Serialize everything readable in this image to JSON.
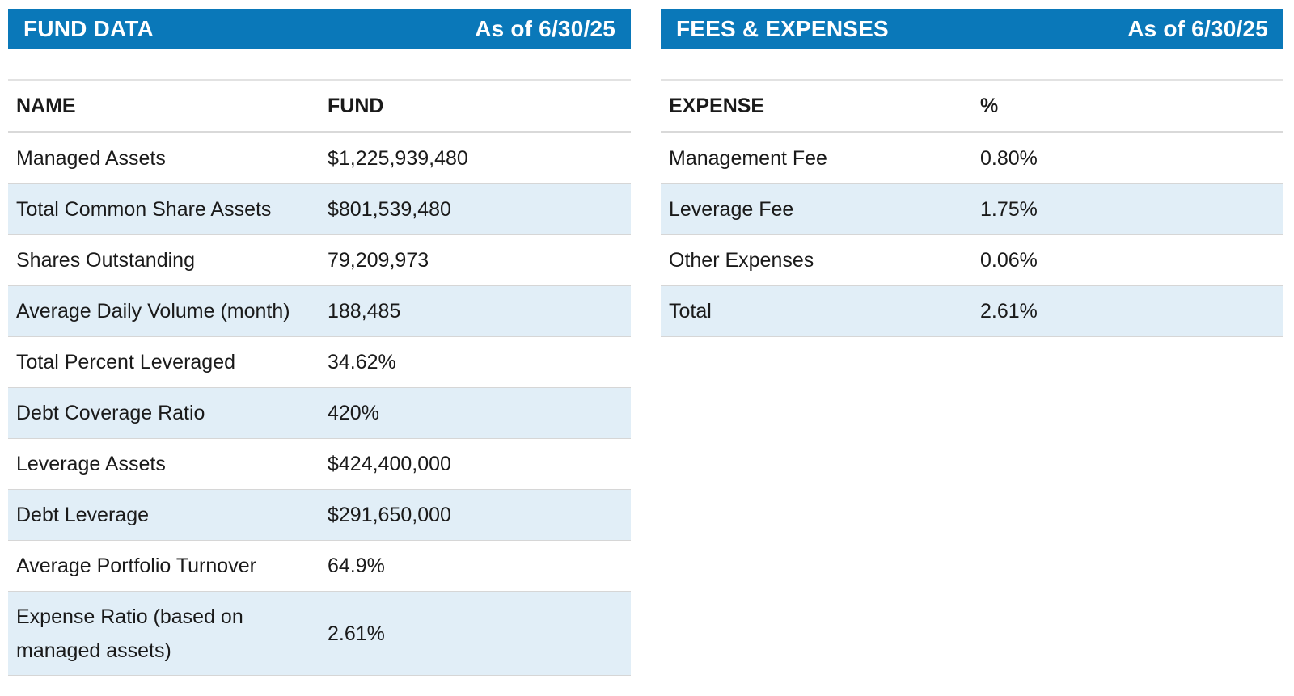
{
  "fund_data": {
    "title": "FUND DATA",
    "as_of": "As of 6/30/25",
    "headers": [
      "NAME",
      "FUND"
    ],
    "rows": [
      [
        "Managed Assets",
        "$1,225,939,480"
      ],
      [
        "Total Common Share Assets",
        "$801,539,480"
      ],
      [
        "Shares Outstanding",
        "79,209,973"
      ],
      [
        "Average Daily Volume (month)",
        "188,485"
      ],
      [
        "Total Percent Leveraged",
        "34.62%"
      ],
      [
        "Debt Coverage Ratio",
        "420%"
      ],
      [
        "Leverage Assets",
        "$424,400,000"
      ],
      [
        "Debt Leverage",
        "$291,650,000"
      ],
      [
        "Average Portfolio Turnover",
        "64.9%"
      ],
      [
        "Expense Ratio (based on managed assets)",
        "2.61%"
      ]
    ]
  },
  "fees_expenses": {
    "title": "FEES & EXPENSES",
    "as_of": "As of 6/30/25",
    "headers": [
      "EXPENSE",
      "%"
    ],
    "rows": [
      [
        "Management Fee",
        "0.80%"
      ],
      [
        "Leverage Fee",
        "1.75%"
      ],
      [
        "Other Expenses",
        "0.06%"
      ],
      [
        "Total",
        "2.61%"
      ]
    ]
  },
  "colors": {
    "header_bg": "#0a78b9",
    "stripe_bg": "#e1eef7"
  }
}
